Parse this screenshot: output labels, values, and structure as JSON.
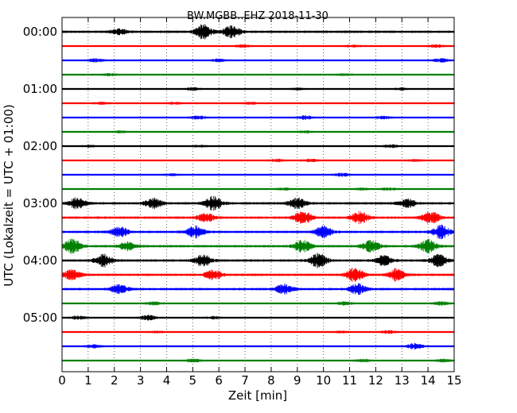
{
  "chart_data": {
    "type": "line",
    "title": "BW.MGBB..EHZ 2018-11-30",
    "xlabel": "Zeit  [min]",
    "ylabel": "UTC (Lokalzeit = UTC + 01:00)",
    "xlim": [
      0,
      15
    ],
    "x_ticks": [
      "0",
      "1",
      "2",
      "3",
      "4",
      "5",
      "6",
      "7",
      "8",
      "9",
      "10",
      "11",
      "12",
      "13",
      "14",
      "15"
    ],
    "y_tick_labels": [
      "00:00",
      "01:00",
      "02:00",
      "03:00",
      "04:00",
      "05:00"
    ],
    "trace_interval_minutes": 15,
    "trace_count": 24,
    "color_cycle": [
      "#000000",
      "#ff0000",
      "#0000ff",
      "#008000"
    ],
    "grid": "vertical dotted at each minute",
    "traces": [
      {
        "start": "00:00",
        "amplitude": 1.0,
        "events": [
          [
            2.2,
            0.35
          ],
          [
            5.4,
            1.0
          ],
          [
            6.5,
            0.9
          ]
        ]
      },
      {
        "start": "00:15",
        "amplitude": 0.5,
        "events": [
          [
            6.9,
            0.4
          ],
          [
            11.1,
            0.3
          ],
          [
            14.3,
            0.4
          ]
        ]
      },
      {
        "start": "00:30",
        "amplitude": 0.5,
        "events": [
          [
            1.3,
            0.5
          ],
          [
            6.0,
            0.4
          ],
          [
            14.5,
            0.5
          ]
        ]
      },
      {
        "start": "00:45",
        "amplitude": 0.5,
        "events": [
          [
            1.8,
            0.3
          ],
          [
            10.8,
            0.3
          ]
        ]
      },
      {
        "start": "01:00",
        "amplitude": 0.5,
        "events": [
          [
            5.0,
            0.4
          ],
          [
            9.0,
            0.3
          ],
          [
            13.0,
            0.3
          ]
        ]
      },
      {
        "start": "01:15",
        "amplitude": 0.5,
        "events": [
          [
            1.5,
            0.3
          ],
          [
            4.3,
            0.3
          ],
          [
            7.2,
            0.3
          ]
        ]
      },
      {
        "start": "01:30",
        "amplitude": 0.5,
        "events": [
          [
            5.2,
            0.5
          ],
          [
            9.3,
            0.5
          ],
          [
            12.3,
            0.4
          ]
        ]
      },
      {
        "start": "01:45",
        "amplitude": 0.5,
        "events": [
          [
            2.2,
            0.3
          ],
          [
            9.3,
            0.3
          ]
        ]
      },
      {
        "start": "02:00",
        "amplitude": 0.5,
        "events": [
          [
            1.0,
            0.3
          ],
          [
            5.3,
            0.3
          ],
          [
            12.6,
            0.4
          ]
        ]
      },
      {
        "start": "02:15",
        "amplitude": 0.5,
        "events": [
          [
            8.2,
            0.4
          ],
          [
            9.5,
            0.4
          ],
          [
            13.5,
            0.3
          ]
        ]
      },
      {
        "start": "02:30",
        "amplitude": 0.5,
        "events": [
          [
            4.2,
            0.3
          ],
          [
            10.7,
            0.5
          ]
        ]
      },
      {
        "start": "02:45",
        "amplitude": 0.5,
        "events": [
          [
            8.5,
            0.3
          ],
          [
            11.5,
            0.3
          ],
          [
            12.5,
            0.4
          ]
        ]
      },
      {
        "start": "03:00",
        "amplitude": 1.0,
        "events": [
          [
            0.6,
            0.8
          ],
          [
            3.5,
            0.7
          ],
          [
            5.8,
            1.0
          ],
          [
            9.0,
            0.7
          ],
          [
            13.2,
            0.6
          ]
        ]
      },
      {
        "start": "03:15",
        "amplitude": 1.0,
        "events": [
          [
            5.5,
            0.6
          ],
          [
            9.2,
            1.0
          ],
          [
            11.4,
            0.8
          ],
          [
            14.1,
            0.9
          ]
        ]
      },
      {
        "start": "03:30",
        "amplitude": 1.0,
        "events": [
          [
            2.2,
            0.7
          ],
          [
            5.1,
            0.8
          ],
          [
            10.0,
            0.8
          ],
          [
            14.5,
            0.9
          ]
        ]
      },
      {
        "start": "03:45",
        "amplitude": 1.0,
        "events": [
          [
            0.4,
            1.0
          ],
          [
            2.5,
            0.6
          ],
          [
            9.2,
            0.9
          ],
          [
            11.8,
            0.8
          ],
          [
            14.0,
            0.9
          ]
        ]
      },
      {
        "start": "04:00",
        "amplitude": 1.0,
        "events": [
          [
            1.6,
            0.9
          ],
          [
            5.4,
            0.8
          ],
          [
            9.8,
            1.0
          ],
          [
            12.3,
            0.7
          ],
          [
            14.4,
            0.8
          ]
        ]
      },
      {
        "start": "04:15",
        "amplitude": 1.0,
        "events": [
          [
            0.4,
            0.7
          ],
          [
            5.8,
            0.7
          ],
          [
            11.2,
            1.0
          ],
          [
            12.8,
            0.9
          ]
        ]
      },
      {
        "start": "04:30",
        "amplitude": 1.0,
        "events": [
          [
            2.2,
            0.6
          ],
          [
            8.5,
            0.7
          ],
          [
            11.3,
            0.7
          ]
        ]
      },
      {
        "start": "04:45",
        "amplitude": 0.5,
        "events": [
          [
            3.5,
            0.5
          ],
          [
            10.8,
            0.5
          ],
          [
            14.5,
            0.5
          ]
        ]
      },
      {
        "start": "05:00",
        "amplitude": 0.5,
        "events": [
          [
            0.6,
            0.5
          ],
          [
            3.3,
            0.7
          ],
          [
            5.8,
            0.4
          ]
        ]
      },
      {
        "start": "05:15",
        "amplitude": 0.5,
        "events": [
          [
            3.6,
            0.3
          ],
          [
            10.7,
            0.3
          ],
          [
            12.5,
            0.4
          ]
        ]
      },
      {
        "start": "05:30",
        "amplitude": 0.5,
        "events": [
          [
            1.2,
            0.5
          ],
          [
            13.5,
            0.8
          ]
        ]
      },
      {
        "start": "05:45",
        "amplitude": 0.5,
        "events": [
          [
            5.0,
            0.5
          ],
          [
            11.5,
            0.4
          ],
          [
            14.6,
            0.4
          ]
        ]
      }
    ]
  }
}
